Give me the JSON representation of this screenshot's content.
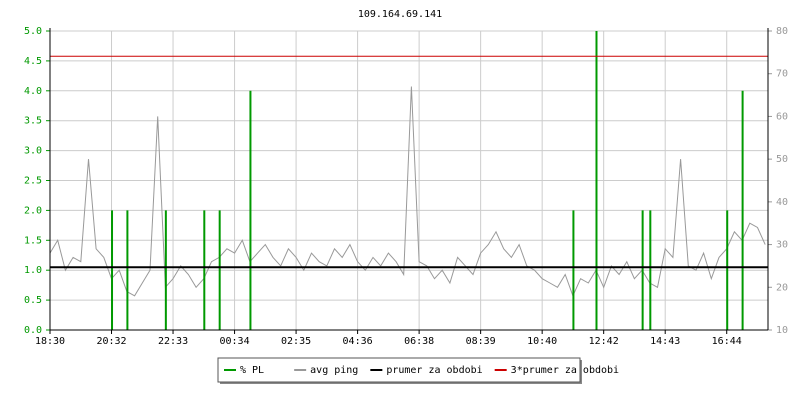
{
  "chart_data": {
    "type": "line",
    "title": "109.164.69.141",
    "categories": [
      "18:30",
      null,
      null,
      null,
      null,
      null,
      null,
      null,
      "20:32",
      null,
      null,
      null,
      null,
      null,
      null,
      null,
      "22:33",
      null,
      null,
      null,
      null,
      null,
      null,
      null,
      "00:34",
      null,
      null,
      null,
      null,
      null,
      null,
      null,
      "02:35",
      null,
      null,
      null,
      null,
      null,
      null,
      null,
      "04:36",
      null,
      null,
      null,
      null,
      null,
      null,
      null,
      "06:38",
      null,
      null,
      null,
      null,
      null,
      null,
      null,
      "08:39",
      null,
      null,
      null,
      null,
      null,
      null,
      null,
      "10:40",
      null,
      null,
      null,
      null,
      null,
      null,
      null,
      "12:42",
      null,
      null,
      null,
      null,
      null,
      null,
      null,
      "14:43",
      null,
      null,
      null,
      null,
      null,
      null,
      null,
      "16:44",
      null,
      null,
      null,
      null,
      null
    ],
    "series": [
      {
        "name": "% PL",
        "color": "#009900",
        "style": "impulse",
        "axis": "y",
        "values": [
          0,
          0,
          0,
          0,
          0,
          0,
          0,
          0,
          2.0,
          0,
          2.0,
          0,
          0,
          0,
          0,
          2.0,
          0,
          0,
          0,
          0,
          2.0,
          0,
          2.0,
          0,
          0,
          0,
          4.0,
          0,
          0,
          0,
          0,
          0,
          0,
          0,
          0,
          0,
          0,
          0,
          0,
          0,
          0,
          0,
          0,
          0,
          0,
          0,
          0,
          0,
          0,
          0,
          0,
          0,
          0,
          0,
          0,
          0,
          0,
          0,
          0,
          0,
          0,
          0,
          0,
          0,
          0,
          0,
          0,
          0,
          2.0,
          0,
          0,
          5.0,
          0,
          0,
          0,
          0,
          0,
          2.0,
          2.0,
          0,
          0,
          0,
          0,
          0,
          0,
          0,
          0,
          0,
          2.0,
          0,
          4.0,
          0,
          0,
          0
        ]
      },
      {
        "name": "avg ping",
        "color": "#999999",
        "style": "line",
        "axis": "y2",
        "values": [
          28,
          31,
          24,
          27,
          26,
          50,
          29,
          27,
          22,
          24,
          19,
          18,
          21,
          24,
          60,
          20,
          22,
          25,
          23,
          20,
          22,
          26,
          27,
          29,
          28,
          31,
          26,
          28,
          30,
          27,
          25,
          29,
          27,
          24,
          28,
          26,
          25,
          29,
          27,
          30,
          26,
          24,
          27,
          25,
          28,
          26,
          23,
          67,
          26,
          25,
          22,
          24,
          21,
          27,
          25,
          23,
          28,
          30,
          33,
          29,
          27,
          30,
          25,
          24,
          22,
          21,
          20,
          23,
          18,
          22,
          21,
          24,
          20,
          25,
          23,
          26,
          22,
          24,
          21,
          20,
          29,
          27,
          50,
          25,
          24,
          28,
          22,
          27,
          29,
          33,
          31,
          35,
          34,
          30
        ]
      },
      {
        "name": "prumer za obdobi",
        "color": "#000000",
        "style": "hline",
        "axis": "y2",
        "value": 24.7
      },
      {
        "name": "3*prumer za obdobi",
        "color": "#cc0000",
        "style": "hline",
        "axis": "y2",
        "value": 74.1
      }
    ],
    "ylim": [
      0,
      5
    ],
    "yticks": [
      {
        "value": 0,
        "label": "0.0"
      },
      {
        "value": 0.5,
        "label": "0.5"
      },
      {
        "value": 1,
        "label": "1.0"
      },
      {
        "value": 1.5,
        "label": "1.5"
      },
      {
        "value": 2,
        "label": "2.0"
      },
      {
        "value": 2.5,
        "label": "2.5"
      },
      {
        "value": 3,
        "label": "3.0"
      },
      {
        "value": 3.5,
        "label": "3.5"
      },
      {
        "value": 4,
        "label": "4.0"
      },
      {
        "value": 4.5,
        "label": "4.5"
      },
      {
        "value": 5,
        "label": "5.0"
      }
    ],
    "y2lim": [
      10,
      80
    ],
    "y2ticks": [
      10,
      20,
      30,
      40,
      50,
      60,
      70,
      80
    ],
    "grid": true
  }
}
